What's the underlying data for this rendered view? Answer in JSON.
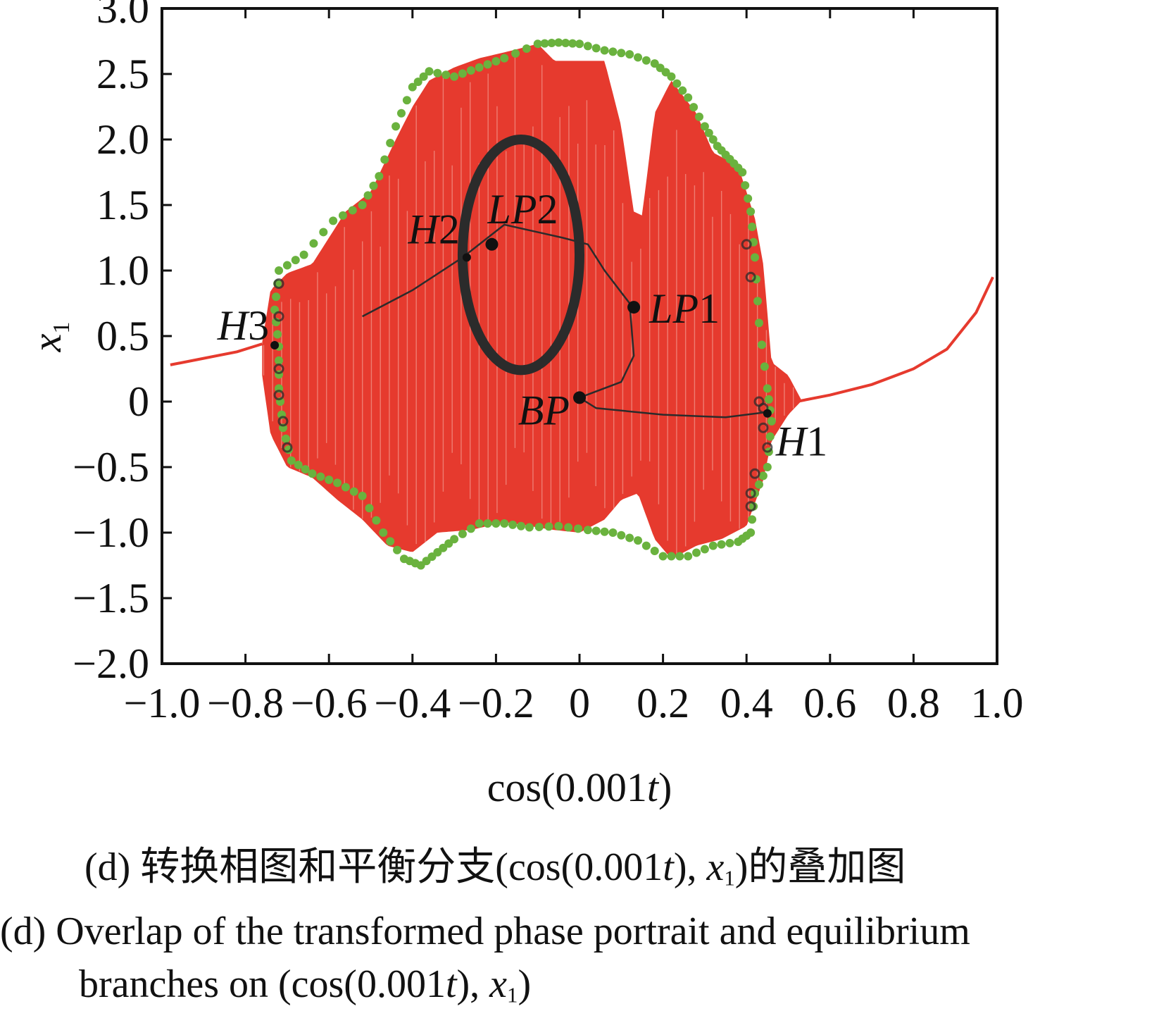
{
  "chart_data": {
    "type": "scatter",
    "title": "",
    "xlabel": "cos(0.001t)",
    "ylabel": "x1",
    "xlim": [
      -1.0,
      1.0
    ],
    "ylim": [
      -2.0,
      3.0
    ],
    "x_ticks": [
      -1.0,
      -0.8,
      -0.6,
      -0.4,
      -0.2,
      0,
      0.2,
      0.4,
      0.6,
      0.8,
      1.0
    ],
    "x_tick_labels": [
      "−1.0",
      "−0.8",
      "−0.6",
      "−0.4",
      "−0.2",
      "0",
      "0.2",
      "0.4",
      "0.6",
      "0.8",
      "1.0"
    ],
    "y_ticks": [
      3.0,
      2.5,
      2.0,
      1.5,
      1.0,
      0.5,
      0,
      -0.5,
      -1.0,
      -1.5,
      -2.0
    ],
    "y_tick_labels": [
      "3.0",
      "2.5",
      "2.0",
      "1.5",
      "1.0",
      "0.5",
      "0",
      "−0.5",
      "−1.0",
      "−1.5",
      "−2.0"
    ],
    "grid": false,
    "series": [
      {
        "role": "transformed phase portrait",
        "color": "#e63a2e",
        "tails": {
          "left": [
            [
              -0.98,
              0.28
            ],
            [
              -0.9,
              0.33
            ],
            [
              -0.82,
              0.38
            ],
            [
              -0.78,
              0.42
            ],
            [
              -0.76,
              0.44
            ]
          ],
          "right": [
            [
              0.52,
              0.0
            ],
            [
              0.6,
              0.05
            ],
            [
              0.7,
              0.13
            ],
            [
              0.8,
              0.25
            ],
            [
              0.88,
              0.4
            ],
            [
              0.95,
              0.68
            ],
            [
              0.99,
              0.95
            ]
          ]
        },
        "upper_envelope": [
          [
            -0.76,
            0.45
          ],
          [
            -0.74,
            0.85
          ],
          [
            -0.7,
            0.98
          ],
          [
            -0.64,
            1.05
          ],
          [
            -0.6,
            1.25
          ],
          [
            -0.56,
            1.45
          ],
          [
            -0.5,
            1.6
          ],
          [
            -0.44,
            2.0
          ],
          [
            -0.4,
            2.25
          ],
          [
            -0.36,
            2.45
          ],
          [
            -0.3,
            2.55
          ],
          [
            -0.24,
            2.62
          ],
          [
            -0.16,
            2.68
          ],
          [
            -0.1,
            2.73
          ],
          [
            -0.06,
            2.6
          ],
          [
            -0.02,
            2.6
          ],
          [
            0.02,
            2.6
          ],
          [
            0.06,
            2.6
          ],
          [
            0.1,
            2.1
          ],
          [
            0.13,
            1.45
          ],
          [
            0.15,
            1.42
          ],
          [
            0.18,
            2.2
          ],
          [
            0.22,
            2.45
          ],
          [
            0.28,
            2.2
          ],
          [
            0.32,
            1.9
          ],
          [
            0.38,
            1.8
          ],
          [
            0.42,
            1.4
          ],
          [
            0.44,
            1.05
          ],
          [
            0.46,
            0.3
          ],
          [
            0.5,
            0.2
          ],
          [
            0.53,
            0.02
          ]
        ],
        "lower_envelope": [
          [
            -0.76,
            0.2
          ],
          [
            -0.74,
            -0.25
          ],
          [
            -0.7,
            -0.5
          ],
          [
            -0.64,
            -0.58
          ],
          [
            -0.58,
            -0.75
          ],
          [
            -0.52,
            -0.9
          ],
          [
            -0.46,
            -1.1
          ],
          [
            -0.4,
            -1.15
          ],
          [
            -0.34,
            -1.0
          ],
          [
            -0.26,
            -0.98
          ],
          [
            -0.18,
            -0.92
          ],
          [
            -0.12,
            -0.95
          ],
          [
            -0.06,
            -0.98
          ],
          [
            0.0,
            -1.0
          ],
          [
            0.06,
            -0.9
          ],
          [
            0.1,
            -0.75
          ],
          [
            0.14,
            -0.7
          ],
          [
            0.18,
            -1.05
          ],
          [
            0.22,
            -1.2
          ],
          [
            0.28,
            -1.1
          ],
          [
            0.34,
            -1.05
          ],
          [
            0.4,
            -0.95
          ],
          [
            0.44,
            -0.6
          ],
          [
            0.46,
            -0.3
          ],
          [
            0.5,
            -0.1
          ],
          [
            0.53,
            0.0
          ]
        ]
      },
      {
        "role": "green dotted boundary",
        "color": "#6ab23e",
        "points": [
          [
            -0.72,
            0.42
          ],
          [
            -0.73,
            0.7
          ],
          [
            -0.72,
            1.0
          ],
          [
            -0.66,
            1.12
          ],
          [
            -0.59,
            1.38
          ],
          [
            -0.52,
            1.5
          ],
          [
            -0.48,
            1.72
          ],
          [
            -0.44,
            2.1
          ],
          [
            -0.4,
            2.4
          ],
          [
            -0.36,
            2.52
          ],
          [
            -0.3,
            2.48
          ],
          [
            -0.24,
            2.55
          ],
          [
            -0.18,
            2.62
          ],
          [
            -0.1,
            2.73
          ],
          [
            -0.05,
            2.74
          ],
          [
            0.0,
            2.73
          ],
          [
            0.06,
            2.68
          ],
          [
            0.12,
            2.65
          ],
          [
            0.18,
            2.58
          ],
          [
            0.22,
            2.48
          ],
          [
            0.26,
            2.32
          ],
          [
            0.3,
            2.1
          ],
          [
            0.33,
            1.95
          ],
          [
            0.36,
            1.85
          ],
          [
            0.39,
            1.75
          ],
          [
            0.41,
            1.45
          ],
          [
            0.42,
            1.1
          ],
          [
            0.43,
            0.6
          ],
          [
            0.45,
            0.1
          ],
          [
            0.46,
            -0.15
          ],
          [
            0.45,
            -0.5
          ],
          [
            0.42,
            -0.7
          ],
          [
            0.41,
            -1.0
          ],
          [
            0.38,
            -1.07
          ],
          [
            0.32,
            -1.1
          ],
          [
            0.26,
            -1.18
          ],
          [
            0.2,
            -1.18
          ],
          [
            0.14,
            -1.06
          ],
          [
            0.08,
            -1.0
          ],
          [
            0.02,
            -0.98
          ],
          [
            -0.05,
            -0.95
          ],
          [
            -0.12,
            -0.96
          ],
          [
            -0.18,
            -0.93
          ],
          [
            -0.24,
            -0.93
          ],
          [
            -0.3,
            -1.05
          ],
          [
            -0.34,
            -1.15
          ],
          [
            -0.38,
            -1.25
          ],
          [
            -0.42,
            -1.2
          ],
          [
            -0.47,
            -1.0
          ],
          [
            -0.52,
            -0.72
          ],
          [
            -0.58,
            -0.62
          ],
          [
            -0.64,
            -0.55
          ],
          [
            -0.69,
            -0.45
          ],
          [
            -0.71,
            -0.2
          ],
          [
            -0.72,
            0.1
          ]
        ]
      },
      {
        "role": "equilibrium branch ellipse",
        "color": "#2b2b2b",
        "center": [
          -0.14,
          1.12
        ],
        "radius_x": 0.14,
        "radius_y": 0.88
      },
      {
        "role": "equilibrium branch curve",
        "color": "#2b2b2b",
        "points": [
          [
            -0.52,
            0.65
          ],
          [
            -0.4,
            0.85
          ],
          [
            -0.28,
            1.1
          ],
          [
            -0.18,
            1.35
          ],
          [
            -0.04,
            1.25
          ],
          [
            0.02,
            1.2
          ],
          [
            0.06,
            1.0
          ],
          [
            0.12,
            0.75
          ],
          [
            0.13,
            0.35
          ],
          [
            0.1,
            0.15
          ],
          [
            0.0,
            0.03
          ],
          [
            0.04,
            -0.05
          ],
          [
            0.2,
            -0.1
          ],
          [
            0.35,
            -0.12
          ],
          [
            0.45,
            -0.08
          ]
        ]
      },
      {
        "role": "equilibrium stability markers",
        "color": "#2b2b2b",
        "points": [
          [
            -0.72,
            0.65
          ],
          [
            -0.72,
            0.9
          ],
          [
            -0.72,
            0.25
          ],
          [
            -0.72,
            0.05
          ],
          [
            -0.71,
            -0.15
          ],
          [
            -0.7,
            -0.35
          ],
          [
            0.4,
            1.2
          ],
          [
            0.41,
            0.95
          ],
          [
            0.43,
            0.0
          ],
          [
            0.44,
            -0.2
          ],
          [
            0.45,
            -0.35
          ],
          [
            0.44,
            -0.05
          ],
          [
            0.41,
            -0.7
          ],
          [
            0.41,
            -0.8
          ],
          [
            0.42,
            -0.55
          ]
        ]
      }
    ],
    "annotations": [
      {
        "id": "H1",
        "letter": "H",
        "digit": "1",
        "x": 0.45,
        "y": -0.09
      },
      {
        "id": "H2",
        "letter": "H",
        "digit": "2",
        "x": -0.27,
        "y": 1.1
      },
      {
        "id": "H3",
        "letter": "H",
        "digit": "3",
        "x": -0.73,
        "y": 0.43
      },
      {
        "id": "LP1",
        "letter": "LP",
        "digit": "1",
        "x": 0.13,
        "y": 0.72
      },
      {
        "id": "LP2",
        "letter": "LP",
        "digit": "2",
        "x": -0.21,
        "y": 1.2
      },
      {
        "id": "BP",
        "letter": "BP",
        "digit": "",
        "x": 0.0,
        "y": 0.03
      }
    ]
  },
  "axes_titles": {
    "x_prefix": "cos(0.001",
    "x_var": "t",
    "x_suffix": ")",
    "y_var": "x",
    "y_index": "1"
  },
  "captions": {
    "zh_prefix": "(d)  转换相图和平衡分支(cos(0.001",
    "zh_t": "t",
    "zh_mid": "), ",
    "zh_x": "x",
    "zh_index": "1",
    "zh_suffix": ")的叠加图",
    "en_line1": "(d)  Overlap of the transformed phase portrait and equilibrium",
    "en_line2_prefix": "branches on (cos(0.001",
    "en_t": "t",
    "en_mid": "), ",
    "en_x": "x",
    "en_index": "1",
    "en_suffix": ")"
  }
}
